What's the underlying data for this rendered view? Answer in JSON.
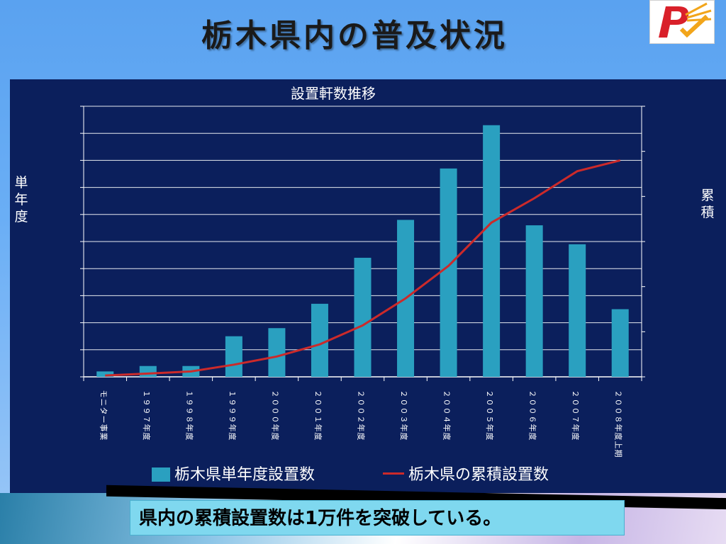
{
  "slide": {
    "title": "栃木県内の普及状況",
    "callout": "県内の累積設置数は1万件を突破している。"
  },
  "logo": {
    "icon": "solar-pv-logo-icon",
    "colors": [
      "#d9202a",
      "#f2a51a"
    ]
  },
  "colors": {
    "panel_bg": "#0b1f5c",
    "bar": "#2aa0c0",
    "line": "#cc2a2a",
    "grid": "#ffffff",
    "text": "#ffffff"
  },
  "chart_data": {
    "type": "bar",
    "title": "設置軒数推移",
    "ylabel_left": "単年度",
    "ylabel_right": "累積",
    "grid": true,
    "legend_position": "bottom",
    "y_tick_labels_visible": false,
    "categories": [
      "モニター事業",
      "１９９７年度",
      "１９９８年度",
      "１９９９年度",
      "２０００年度",
      "２００１年度",
      "２００２年度",
      "２００３年度",
      "２００４年度",
      "２００５年度",
      "２００６年度",
      "２００７年度",
      "２００８年度上期"
    ],
    "ylim_left": [
      0,
      100
    ],
    "ylim_right": [
      0,
      100
    ],
    "series": [
      {
        "name": "栃木県単年度設置数",
        "type": "bar",
        "axis": "left",
        "values": [
          2,
          4,
          4,
          15,
          18,
          27,
          44,
          58,
          77,
          93,
          56,
          49,
          25
        ]
      },
      {
        "name": "栃木県の累積設置数",
        "type": "line",
        "axis": "right",
        "values": [
          0.5,
          1.2,
          2,
          4.5,
          7.5,
          12,
          19,
          29,
          41,
          57,
          66,
          76,
          80
        ]
      }
    ]
  }
}
